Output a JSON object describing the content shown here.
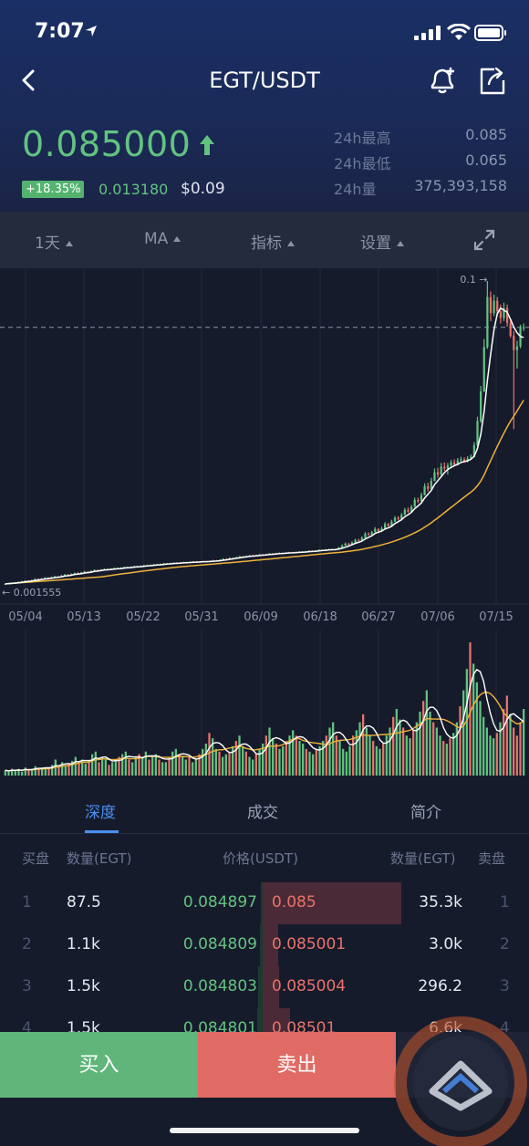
{
  "status_bar": {
    "time": "7:07"
  },
  "nav": {
    "title": "EGT/USDT"
  },
  "ticker": {
    "price": "0.085000",
    "change_pct": "+18.35%",
    "change_abs": "0.013180",
    "usd_value": "$0.09",
    "stats": [
      {
        "label": "24h最高",
        "value": "0.085"
      },
      {
        "label": "24h最低",
        "value": "0.065"
      },
      {
        "label": "24h量",
        "value": "375,393,158"
      }
    ]
  },
  "toolbar": {
    "interval": "1天",
    "ma": "MA",
    "indicator": "指标",
    "settings": "设置"
  },
  "colors": {
    "up": "#62c380",
    "down": "#e8736b",
    "accent": "#4a8ef0",
    "ma_fast": "#ffffff",
    "ma_slow": "#f0b23a"
  },
  "chart_data": {
    "type": "candlestick",
    "x_labels": [
      "05/04",
      "05/13",
      "05/22",
      "05/31",
      "06/09",
      "06/18",
      "06/27",
      "07/06",
      "07/15"
    ],
    "high_annotation": "0.1",
    "low_annotation": "0.001555",
    "current_price": 0.085,
    "ylim": [
      0,
      0.1
    ],
    "candles": [
      [
        0.0016,
        0.0018,
        0.0015,
        0.0019
      ],
      [
        0.0018,
        0.002,
        0.0017,
        0.0021
      ],
      [
        0.002,
        0.0021,
        0.0019,
        0.0023
      ],
      [
        0.0021,
        0.0023,
        0.002,
        0.0024
      ],
      [
        0.0023,
        0.0024,
        0.0022,
        0.0026
      ],
      [
        0.0024,
        0.0026,
        0.0023,
        0.0028
      ],
      [
        0.0026,
        0.0028,
        0.0025,
        0.003
      ],
      [
        0.0028,
        0.0027,
        0.0026,
        0.003
      ],
      [
        0.0027,
        0.003,
        0.0026,
        0.0032
      ],
      [
        0.003,
        0.0034,
        0.0029,
        0.0036
      ],
      [
        0.0034,
        0.0032,
        0.003,
        0.0036
      ],
      [
        0.0032,
        0.0035,
        0.0031,
        0.0037
      ],
      [
        0.0035,
        0.0038,
        0.0034,
        0.004
      ],
      [
        0.0038,
        0.0036,
        0.0035,
        0.004
      ],
      [
        0.0036,
        0.004,
        0.0035,
        0.0042
      ],
      [
        0.004,
        0.0042,
        0.0039,
        0.0044
      ],
      [
        0.0042,
        0.0041,
        0.004,
        0.0044
      ],
      [
        0.0041,
        0.0045,
        0.004,
        0.0047
      ],
      [
        0.0045,
        0.0048,
        0.0044,
        0.005
      ],
      [
        0.0048,
        0.0046,
        0.0045,
        0.005
      ],
      [
        0.0046,
        0.005,
        0.0045,
        0.0052
      ],
      [
        0.005,
        0.0053,
        0.0049,
        0.0055
      ],
      [
        0.0053,
        0.005,
        0.0049,
        0.0056
      ],
      [
        0.005,
        0.0055,
        0.0049,
        0.0057
      ],
      [
        0.0055,
        0.0058,
        0.0054,
        0.006
      ],
      [
        0.0058,
        0.0056,
        0.0055,
        0.006
      ],
      [
        0.0056,
        0.006,
        0.0055,
        0.0062
      ],
      [
        0.006,
        0.0063,
        0.0059,
        0.0065
      ],
      [
        0.0063,
        0.0061,
        0.006,
        0.0065
      ],
      [
        0.0061,
        0.0064,
        0.006,
        0.0066
      ],
      [
        0.0064,
        0.0066,
        0.0063,
        0.0068
      ],
      [
        0.0066,
        0.0064,
        0.0063,
        0.0068
      ],
      [
        0.0064,
        0.0067,
        0.0063,
        0.0069
      ],
      [
        0.0067,
        0.0069,
        0.0066,
        0.0071
      ],
      [
        0.0069,
        0.0068,
        0.0067,
        0.0071
      ],
      [
        0.0068,
        0.007,
        0.0067,
        0.0072
      ],
      [
        0.007,
        0.0072,
        0.0069,
        0.0074
      ],
      [
        0.0072,
        0.0071,
        0.007,
        0.0074
      ],
      [
        0.0071,
        0.0073,
        0.007,
        0.0075
      ],
      [
        0.0073,
        0.0075,
        0.0072,
        0.0077
      ],
      [
        0.0075,
        0.0074,
        0.0073,
        0.0077
      ],
      [
        0.0074,
        0.0076,
        0.0073,
        0.0078
      ],
      [
        0.0076,
        0.0078,
        0.0075,
        0.008
      ],
      [
        0.0078,
        0.0077,
        0.0076,
        0.008
      ],
      [
        0.0077,
        0.0079,
        0.0076,
        0.0081
      ],
      [
        0.0079,
        0.0081,
        0.0078,
        0.0083
      ],
      [
        0.0081,
        0.008,
        0.0079,
        0.0083
      ],
      [
        0.008,
        0.0082,
        0.0079,
        0.0084
      ],
      [
        0.0082,
        0.0084,
        0.0081,
        0.0086
      ],
      [
        0.0084,
        0.0083,
        0.0082,
        0.0086
      ],
      [
        0.0083,
        0.0085,
        0.0082,
        0.0087
      ],
      [
        0.0085,
        0.0086,
        0.0084,
        0.0088
      ],
      [
        0.0086,
        0.0085,
        0.0084,
        0.0088
      ],
      [
        0.0085,
        0.0087,
        0.0084,
        0.0089
      ],
      [
        0.0087,
        0.0088,
        0.0086,
        0.009
      ],
      [
        0.0088,
        0.0087,
        0.0086,
        0.009
      ],
      [
        0.0087,
        0.0089,
        0.0086,
        0.0091
      ],
      [
        0.0089,
        0.009,
        0.0088,
        0.0092
      ],
      [
        0.009,
        0.0089,
        0.0088,
        0.0092
      ],
      [
        0.0089,
        0.009,
        0.0088,
        0.0092
      ],
      [
        0.009,
        0.0091,
        0.0089,
        0.0093
      ],
      [
        0.0091,
        0.009,
        0.0089,
        0.0093
      ],
      [
        0.009,
        0.0092,
        0.0089,
        0.0094
      ],
      [
        0.0092,
        0.0094,
        0.0091,
        0.0096
      ],
      [
        0.0094,
        0.0093,
        0.0092,
        0.0096
      ],
      [
        0.0093,
        0.0096,
        0.0092,
        0.0098
      ],
      [
        0.0096,
        0.0099,
        0.0095,
        0.0101
      ],
      [
        0.0099,
        0.0098,
        0.0097,
        0.0101
      ],
      [
        0.0098,
        0.0102,
        0.0097,
        0.0104
      ],
      [
        0.0102,
        0.0101,
        0.01,
        0.0104
      ],
      [
        0.0101,
        0.0104,
        0.01,
        0.0106
      ],
      [
        0.0104,
        0.0107,
        0.0103,
        0.0109
      ],
      [
        0.0107,
        0.0106,
        0.0105,
        0.0109
      ],
      [
        0.0106,
        0.0108,
        0.0105,
        0.011
      ],
      [
        0.0108,
        0.011,
        0.0107,
        0.0112
      ],
      [
        0.011,
        0.0109,
        0.0108,
        0.0112
      ],
      [
        0.0109,
        0.0111,
        0.0108,
        0.0113
      ],
      [
        0.0111,
        0.0113,
        0.011,
        0.0115
      ],
      [
        0.0113,
        0.0112,
        0.0111,
        0.0115
      ],
      [
        0.0112,
        0.0114,
        0.0111,
        0.0116
      ],
      [
        0.0114,
        0.0116,
        0.0113,
        0.0118
      ],
      [
        0.0116,
        0.0115,
        0.0114,
        0.0118
      ],
      [
        0.0115,
        0.0117,
        0.0114,
        0.0119
      ],
      [
        0.0117,
        0.0118,
        0.0116,
        0.012
      ],
      [
        0.0118,
        0.0117,
        0.0116,
        0.012
      ],
      [
        0.0117,
        0.0119,
        0.0116,
        0.0121
      ],
      [
        0.0119,
        0.012,
        0.0118,
        0.0122
      ],
      [
        0.012,
        0.0119,
        0.0118,
        0.0122
      ],
      [
        0.0119,
        0.0121,
        0.0118,
        0.0123
      ],
      [
        0.0121,
        0.0122,
        0.012,
        0.0124
      ],
      [
        0.0122,
        0.0121,
        0.012,
        0.0124
      ],
      [
        0.0121,
        0.0123,
        0.012,
        0.0125
      ],
      [
        0.0123,
        0.0125,
        0.0122,
        0.0127
      ],
      [
        0.0125,
        0.0124,
        0.0123,
        0.0127
      ],
      [
        0.0124,
        0.0126,
        0.0123,
        0.0128
      ],
      [
        0.0126,
        0.0128,
        0.0125,
        0.013
      ],
      [
        0.0128,
        0.0127,
        0.0126,
        0.013
      ],
      [
        0.0127,
        0.0129,
        0.0126,
        0.0131
      ],
      [
        0.0129,
        0.013,
        0.0128,
        0.0132
      ],
      [
        0.013,
        0.0129,
        0.0128,
        0.0132
      ],
      [
        0.0129,
        0.013,
        0.0128,
        0.0132
      ],
      [
        0.013,
        0.0136,
        0.0129,
        0.0138
      ],
      [
        0.0136,
        0.0142,
        0.0135,
        0.0146
      ],
      [
        0.0142,
        0.0148,
        0.0141,
        0.0152
      ],
      [
        0.0148,
        0.0145,
        0.0143,
        0.0151
      ],
      [
        0.0145,
        0.0152,
        0.0144,
        0.0156
      ],
      [
        0.0152,
        0.016,
        0.0151,
        0.0164
      ],
      [
        0.016,
        0.0158,
        0.0156,
        0.0164
      ],
      [
        0.0158,
        0.0168,
        0.0157,
        0.0172
      ],
      [
        0.0168,
        0.018,
        0.0167,
        0.0186
      ],
      [
        0.018,
        0.0178,
        0.0175,
        0.0185
      ],
      [
        0.0178,
        0.0186,
        0.0177,
        0.019
      ],
      [
        0.0186,
        0.0196,
        0.0185,
        0.0202
      ],
      [
        0.0196,
        0.0188,
        0.0186,
        0.0198
      ],
      [
        0.0188,
        0.0198,
        0.0187,
        0.0204
      ],
      [
        0.0198,
        0.0212,
        0.0197,
        0.0218
      ],
      [
        0.0212,
        0.0206,
        0.0204,
        0.0216
      ],
      [
        0.0206,
        0.022,
        0.0205,
        0.0226
      ],
      [
        0.022,
        0.0232,
        0.0219,
        0.0238
      ],
      [
        0.0232,
        0.0228,
        0.0224,
        0.0238
      ],
      [
        0.0228,
        0.0242,
        0.0227,
        0.0248
      ],
      [
        0.0242,
        0.0258,
        0.0241,
        0.0264
      ],
      [
        0.0258,
        0.0252,
        0.0248,
        0.0266
      ],
      [
        0.0252,
        0.0268,
        0.0251,
        0.0274
      ],
      [
        0.0268,
        0.029,
        0.0267,
        0.0298
      ],
      [
        0.029,
        0.0286,
        0.028,
        0.0298
      ],
      [
        0.0286,
        0.0306,
        0.0285,
        0.0314
      ],
      [
        0.0306,
        0.0334,
        0.0305,
        0.0344
      ],
      [
        0.0334,
        0.0326,
        0.0318,
        0.0346
      ],
      [
        0.0326,
        0.0352,
        0.0325,
        0.0362
      ],
      [
        0.0352,
        0.038,
        0.0351,
        0.0392
      ],
      [
        0.038,
        0.0372,
        0.0362,
        0.0394
      ],
      [
        0.0372,
        0.0398,
        0.0371,
        0.041
      ],
      [
        0.0398,
        0.0392,
        0.0384,
        0.0412
      ],
      [
        0.0392,
        0.0402,
        0.0372,
        0.041
      ],
      [
        0.0402,
        0.0412,
        0.0394,
        0.042
      ],
      [
        0.0412,
        0.0404,
        0.04,
        0.0422
      ],
      [
        0.0404,
        0.0418,
        0.0402,
        0.0426
      ],
      [
        0.0418,
        0.0422,
        0.0412,
        0.043
      ],
      [
        0.0422,
        0.0416,
        0.041,
        0.0428
      ],
      [
        0.0416,
        0.0424,
        0.0412,
        0.0432
      ],
      [
        0.0424,
        0.043,
        0.042,
        0.0438
      ],
      [
        0.043,
        0.0468,
        0.0428,
        0.0478
      ],
      [
        0.0468,
        0.0546,
        0.0464,
        0.056
      ],
      [
        0.0546,
        0.0642,
        0.054,
        0.066
      ],
      [
        0.0642,
        0.0786,
        0.064,
        0.0812
      ],
      [
        0.0786,
        0.0948,
        0.078,
        0.1
      ],
      [
        0.0948,
        0.0896,
        0.087,
        0.0966
      ],
      [
        0.0896,
        0.0936,
        0.0886,
        0.0956
      ],
      [
        0.0936,
        0.0902,
        0.0888,
        0.0948
      ],
      [
        0.0902,
        0.088,
        0.0862,
        0.0924
      ],
      [
        0.088,
        0.0912,
        0.087,
        0.093
      ],
      [
        0.0912,
        0.0864,
        0.0852,
        0.0924
      ],
      [
        0.0864,
        0.0822,
        0.0816,
        0.0878
      ],
      [
        0.0822,
        0.0776,
        0.052,
        0.0838
      ],
      [
        0.0776,
        0.0788,
        0.0716,
        0.0806
      ],
      [
        0.0788,
        0.085,
        0.0782,
        0.0858
      ],
      [
        0.085,
        0.085,
        0.0838,
        0.0862
      ]
    ],
    "volume": [
      0.04,
      0.03,
      0.05,
      0.04,
      0.05,
      0.03,
      0.06,
      0.04,
      0.05,
      0.07,
      0.05,
      0.06,
      0.06,
      0.05,
      0.08,
      0.12,
      0.06,
      0.1,
      0.08,
      0.09,
      0.11,
      0.14,
      0.1,
      0.12,
      0.09,
      0.11,
      0.16,
      0.18,
      0.1,
      0.14,
      0.12,
      0.08,
      0.1,
      0.12,
      0.14,
      0.16,
      0.18,
      0.12,
      0.1,
      0.14,
      0.16,
      0.14,
      0.18,
      0.12,
      0.14,
      0.16,
      0.12,
      0.1,
      0.1,
      0.14,
      0.18,
      0.2,
      0.16,
      0.14,
      0.12,
      0.14,
      0.1,
      0.12,
      0.16,
      0.2,
      0.24,
      0.32,
      0.28,
      0.2,
      0.18,
      0.14,
      0.16,
      0.18,
      0.22,
      0.26,
      0.3,
      0.22,
      0.18,
      0.14,
      0.12,
      0.16,
      0.2,
      0.24,
      0.3,
      0.36,
      0.28,
      0.24,
      0.2,
      0.22,
      0.26,
      0.3,
      0.34,
      0.3,
      0.26,
      0.24,
      0.2,
      0.18,
      0.16,
      0.2,
      0.22,
      0.26,
      0.3,
      0.36,
      0.4,
      0.3,
      0.26,
      0.2,
      0.18,
      0.22,
      0.3,
      0.34,
      0.4,
      0.46,
      0.36,
      0.3,
      0.26,
      0.22,
      0.2,
      0.24,
      0.3,
      0.36,
      0.44,
      0.5,
      0.42,
      0.36,
      0.3,
      0.28,
      0.34,
      0.4,
      0.48,
      0.56,
      0.64,
      0.48,
      0.4,
      0.36,
      0.3,
      0.26,
      0.24,
      0.28,
      0.32,
      0.4,
      0.52,
      0.64,
      0.8,
      1.0,
      0.84,
      0.7,
      0.56,
      0.44,
      0.36,
      0.3,
      0.28,
      0.32,
      0.4,
      0.5,
      0.6,
      0.46,
      0.36,
      0.3,
      0.4,
      0.5
    ]
  },
  "tabs": {
    "depth": "深度",
    "trades": "成交",
    "intro": "简介"
  },
  "order_book": {
    "headers": {
      "bid_side": "买盘",
      "bid_qty": "数量(EGT)",
      "price": "价格(USDT)",
      "ask_qty": "数量(EGT)",
      "ask_side": "卖盘"
    },
    "rows": [
      {
        "idx": "1",
        "bid_qty": "87.5",
        "bid_price": "0.084897",
        "ask_price": "0.085",
        "ask_qty": "35.3k",
        "ask_idx": "1",
        "bid_depth": 0.01,
        "ask_depth": 1.0
      },
      {
        "idx": "2",
        "bid_qty": "1.1k",
        "bid_price": "0.084809",
        "ask_price": "0.085001",
        "ask_qty": "3.0k",
        "ask_idx": "2",
        "bid_depth": 0.02,
        "ask_depth": 0.11
      },
      {
        "idx": "3",
        "bid_qty": "1.5k",
        "bid_price": "0.084803",
        "ask_price": "0.085004",
        "ask_qty": "296.2",
        "ask_idx": "3",
        "bid_depth": 0.03,
        "ask_depth": 0.12
      },
      {
        "idx": "4",
        "bid_qty": "1.5k",
        "bid_price": "0.084801",
        "ask_price": "0.08501",
        "ask_qty": "6.6k",
        "ask_idx": "4",
        "bid_depth": 0.04,
        "ask_depth": 0.2
      }
    ]
  },
  "actions": {
    "buy": "买入",
    "sell": "卖出"
  }
}
